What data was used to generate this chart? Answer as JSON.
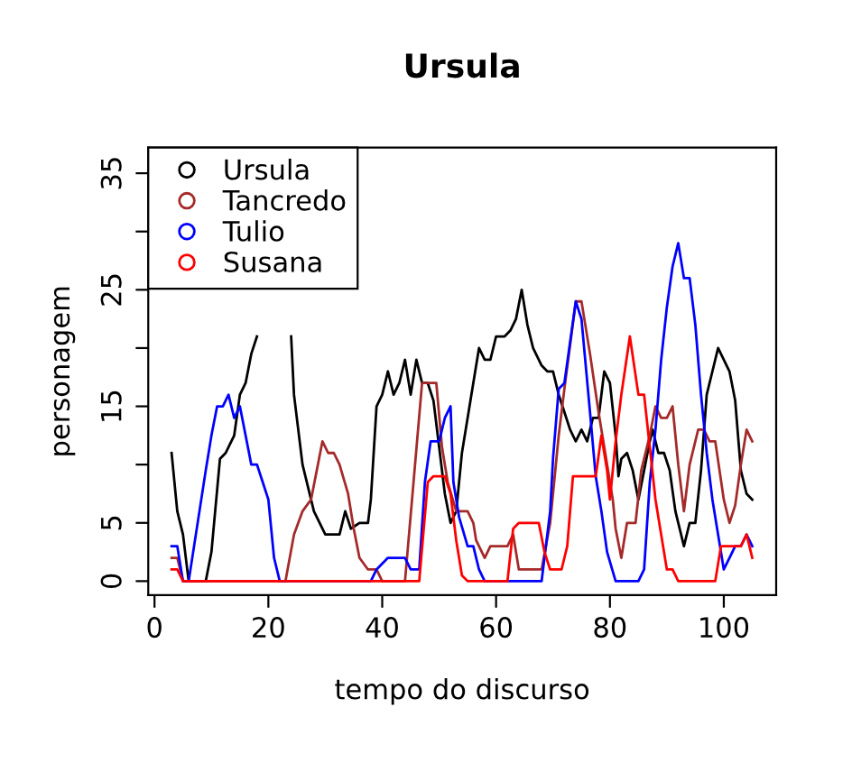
{
  "chart_data": {
    "type": "line",
    "title": "Ursula",
    "xlabel": "tempo do discurso",
    "ylabel": "personagem",
    "xlim": [
      -1.1,
      109.2
    ],
    "xticks": [
      0,
      20,
      40,
      60,
      80,
      100
    ],
    "ylim": [
      -1.2,
      37.2
    ],
    "yticks": [
      0,
      5,
      {
        "value": 10,
        "label": null
      },
      15,
      {
        "value": 20,
        "label": null
      },
      25,
      {
        "value": 30,
        "label": null
      },
      35
    ],
    "legend": "top left",
    "grid": false,
    "marker": "none",
    "line_style": "solid",
    "series": [
      {
        "name": "Ursula",
        "color": "#000000",
        "x": [
          3,
          4,
          5,
          6,
          9,
          10,
          11.5,
          12.5,
          14,
          15,
          16,
          17,
          18,
          21,
          24,
          24.5,
          26,
          28,
          30,
          32.5,
          33.5,
          34.5,
          36,
          37.5,
          38,
          39,
          40,
          41,
          42,
          43,
          44,
          45,
          46,
          47,
          48,
          49,
          50,
          51,
          52,
          53,
          54,
          55.5,
          57,
          58,
          59,
          60,
          61.5,
          62.5,
          63.5,
          64.5,
          65.5,
          66.5,
          68,
          69,
          70,
          71,
          72,
          73,
          74,
          75,
          76,
          77,
          78,
          79,
          80,
          81,
          81.5,
          82,
          83,
          84,
          85,
          86,
          87,
          87.5,
          88.5,
          89.5,
          90.5,
          91.5,
          93,
          94,
          95,
          96,
          97,
          98,
          99,
          100,
          101,
          102,
          103,
          104,
          105
        ],
        "values": [
          11,
          6,
          4,
          0,
          0,
          2.5,
          10.5,
          11,
          12.5,
          16,
          17,
          19.5,
          21,
          null,
          21,
          16,
          10,
          6,
          4,
          4,
          6,
          4.5,
          5,
          5,
          7,
          15,
          16,
          18,
          16,
          17,
          19,
          16,
          19,
          17,
          17,
          15.5,
          11.5,
          7.5,
          5,
          6,
          11,
          15.5,
          20,
          19,
          19,
          21,
          21,
          21.5,
          22.5,
          25,
          22,
          20,
          18.5,
          18,
          18,
          16,
          14.5,
          13,
          12,
          13,
          12,
          14,
          14,
          18,
          17,
          12.5,
          9,
          10.5,
          11,
          9.5,
          7,
          9.5,
          12,
          13,
          11,
          11,
          9.5,
          6,
          3,
          5,
          5,
          9.5,
          16,
          18,
          20,
          19,
          18,
          15.5,
          9.5,
          7.5,
          7
        ]
      },
      {
        "name": "Tancredo",
        "color": "#a52a2a",
        "x": [
          3,
          4,
          5,
          23,
          24.5,
          26,
          27.5,
          28.5,
          29.5,
          30.5,
          31.5,
          32.5,
          34,
          35,
          36,
          37.5,
          39,
          40,
          44,
          45.5,
          47,
          49.5,
          50.5,
          51.5,
          53,
          55,
          56,
          56.5,
          58,
          59,
          62,
          63,
          64,
          68,
          69.5,
          71,
          72,
          74,
          75,
          76.5,
          78,
          79.5,
          80.5,
          81,
          82,
          83,
          84.5,
          85.5,
          87,
          88,
          89,
          90,
          91,
          92,
          93,
          94,
          95.5,
          96.5,
          97.5,
          98.5,
          100,
          101,
          102,
          103,
          104,
          105
        ],
        "values": [
          2,
          2,
          0,
          0,
          4,
          6,
          7,
          9.5,
          12,
          11,
          11,
          10,
          7.5,
          4.5,
          2,
          1,
          1,
          0,
          0,
          8.5,
          17,
          17,
          11.5,
          8.5,
          6,
          6,
          5,
          3.5,
          2,
          3,
          3,
          4,
          1,
          1,
          5,
          12.5,
          16.5,
          24,
          24,
          19.5,
          14.5,
          10,
          7,
          4.5,
          2,
          5,
          5,
          9.5,
          12.5,
          15,
          14,
          14,
          15,
          10,
          6,
          10,
          13,
          13,
          12,
          12,
          7,
          5,
          6.5,
          10,
          13,
          12
        ]
      },
      {
        "name": "Tulio",
        "color": "#0000ff",
        "x": [
          3,
          4,
          5,
          6,
          9,
          10,
          11,
          12,
          13,
          14,
          15,
          16,
          17,
          18,
          19,
          20,
          21,
          22,
          38,
          39,
          41,
          44,
          45,
          46.5,
          47.5,
          48.5,
          50,
          51,
          52,
          52.5,
          53.5,
          55,
          56,
          57,
          58,
          68,
          69.5,
          70,
          71,
          72,
          73,
          74,
          75,
          76.5,
          77.5,
          78.5,
          79.5,
          81,
          85,
          86,
          87,
          88,
          89,
          90,
          91,
          92,
          93,
          94,
          95,
          96,
          97,
          98,
          99,
          100,
          101,
          102,
          103,
          104,
          105
        ],
        "values": [
          3,
          3,
          0,
          0,
          9.5,
          12.5,
          15,
          15,
          16,
          14,
          15,
          12.5,
          10,
          10,
          8.5,
          7,
          2,
          0,
          0,
          1,
          2,
          2,
          1,
          1,
          8.5,
          12,
          12,
          14,
          15,
          8.5,
          5.5,
          3,
          3,
          1,
          0,
          0,
          6,
          10.5,
          16.5,
          17,
          20.5,
          24,
          22.5,
          14.5,
          9,
          6,
          2.5,
          0,
          0,
          1,
          8.5,
          13,
          19,
          23.5,
          27,
          29,
          26,
          26,
          22,
          16,
          11,
          7,
          4,
          1,
          2,
          3,
          3,
          4,
          3
        ]
      },
      {
        "name": "Susana",
        "color": "#ff0000",
        "x": [
          3,
          4,
          5,
          46.5,
          48,
          49,
          51,
          52,
          53,
          54,
          55,
          62,
          63,
          64,
          67.5,
          68.5,
          69.5,
          71.5,
          72.5,
          73.5,
          77.5,
          78.5,
          79.5,
          80,
          81,
          82,
          83.5,
          85,
          86,
          87,
          88,
          89,
          90,
          91,
          92,
          98.5,
          99.5,
          103,
          104,
          105
        ],
        "values": [
          1,
          1,
          0,
          0,
          8.5,
          9,
          9,
          7.5,
          3.5,
          0.5,
          0,
          0,
          4.5,
          5,
          5,
          2.5,
          1,
          1,
          3,
          9,
          9,
          12.5,
          9.5,
          7,
          12,
          16,
          21,
          16,
          16,
          11.5,
          7,
          4,
          1,
          1,
          0,
          0,
          3,
          3,
          4,
          2
        ]
      }
    ]
  }
}
